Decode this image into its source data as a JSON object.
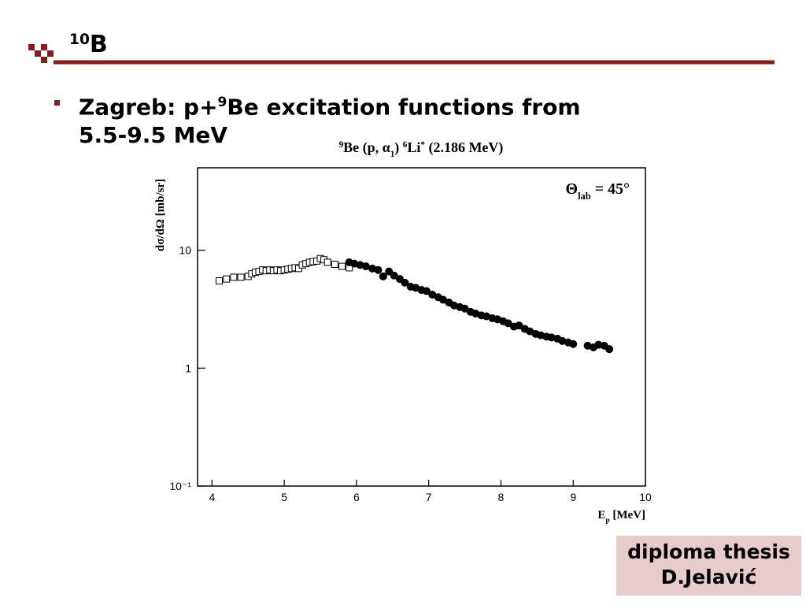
{
  "header": {
    "title": [
      {
        "text": "10",
        "shift": "sup"
      },
      {
        "text": "B",
        "shift": "base"
      }
    ]
  },
  "bullet": [
    {
      "text": "Zagreb: p+",
      "shift": "base"
    },
    {
      "text": "9",
      "shift": "sup"
    },
    {
      "text": "Be excitation functions from 5.5-9.5 MeV",
      "shift": "base"
    }
  ],
  "footer": {
    "lines": [
      "diploma thesis",
      "D.Jelavić"
    ]
  },
  "chart_data": {
    "type": "scatter",
    "title": [
      {
        "text": "9",
        "shift": "sup"
      },
      {
        "text": "Be (p, α",
        "shift": "base"
      },
      {
        "text": "1",
        "shift": "sub"
      },
      {
        "text": ") ",
        "shift": "base"
      },
      {
        "text": "6",
        "shift": "sup"
      },
      {
        "text": "Li",
        "shift": "base"
      },
      {
        "text": "*",
        "shift": "sup"
      },
      {
        "text": " (2.186 MeV)",
        "shift": "base"
      }
    ],
    "annotation": [
      {
        "text": "Θ",
        "shift": "base"
      },
      {
        "text": "lab",
        "shift": "sub"
      },
      {
        "text": " = 45°",
        "shift": "base"
      }
    ],
    "y_label": [
      {
        "text": "dσ/dΩ  [mb/sr]",
        "shift": "base"
      }
    ],
    "x_label": [
      {
        "text": "E",
        "shift": "base"
      },
      {
        "text": "p",
        "shift": "sub"
      },
      {
        "text": " [MeV]",
        "shift": "base"
      }
    ],
    "xlim": [
      3.8,
      10
    ],
    "xticks": [
      4,
      5,
      6,
      7,
      8,
      9,
      10
    ],
    "ylim": [
      0.1,
      50
    ],
    "yticks": [
      {
        "value": 0.1,
        "label": "10⁻¹"
      },
      1,
      10
    ],
    "log_y": true,
    "series": [
      {
        "marker": "square",
        "color": "#000000",
        "x": [
          4.1,
          4.2,
          4.3,
          4.4,
          4.5,
          4.55,
          4.6,
          4.65,
          4.7,
          4.75,
          4.8,
          4.85,
          4.9,
          4.95,
          5.0,
          5.05,
          5.1,
          5.15,
          5.2,
          5.25,
          5.3,
          5.35,
          5.4,
          5.45,
          5.5,
          5.55,
          5.6,
          5.7,
          5.8,
          5.9
        ],
        "values": [
          5.5,
          5.7,
          5.9,
          5.9,
          6.0,
          6.3,
          6.5,
          6.6,
          6.8,
          6.7,
          6.8,
          6.7,
          6.8,
          6.7,
          6.8,
          6.9,
          7.0,
          7.1,
          7.0,
          7.5,
          7.7,
          7.9,
          8.0,
          8.1,
          8.5,
          8.3,
          7.9,
          7.6,
          7.3,
          7.1
        ]
      },
      {
        "marker": "circle",
        "color": "#000000",
        "x": [
          5.9,
          5.97,
          6.05,
          6.13,
          6.22,
          6.3,
          6.37,
          6.45,
          6.52,
          6.6,
          6.67,
          6.75,
          6.82,
          6.9,
          6.97,
          7.05,
          7.13,
          7.2,
          7.28,
          7.35,
          7.43,
          7.5,
          7.58,
          7.65,
          7.73,
          7.8,
          7.88,
          7.95,
          8.03,
          8.1,
          8.18,
          8.25,
          8.33,
          8.4,
          8.48,
          8.55,
          8.63,
          8.7,
          8.78,
          8.85,
          8.93,
          9.0,
          9.2,
          9.28,
          9.35,
          9.43,
          9.5
        ],
        "values": [
          7.9,
          7.7,
          7.5,
          7.3,
          7.0,
          6.8,
          6.0,
          6.6,
          6.1,
          5.7,
          5.3,
          4.9,
          4.8,
          4.6,
          4.5,
          4.2,
          4.0,
          3.8,
          3.6,
          3.4,
          3.3,
          3.2,
          3.0,
          2.9,
          2.8,
          2.75,
          2.65,
          2.6,
          2.5,
          2.4,
          2.25,
          2.3,
          2.15,
          2.05,
          1.95,
          1.9,
          1.85,
          1.82,
          1.78,
          1.7,
          1.65,
          1.6,
          1.55,
          1.5,
          1.58,
          1.55,
          1.45
        ]
      }
    ]
  }
}
